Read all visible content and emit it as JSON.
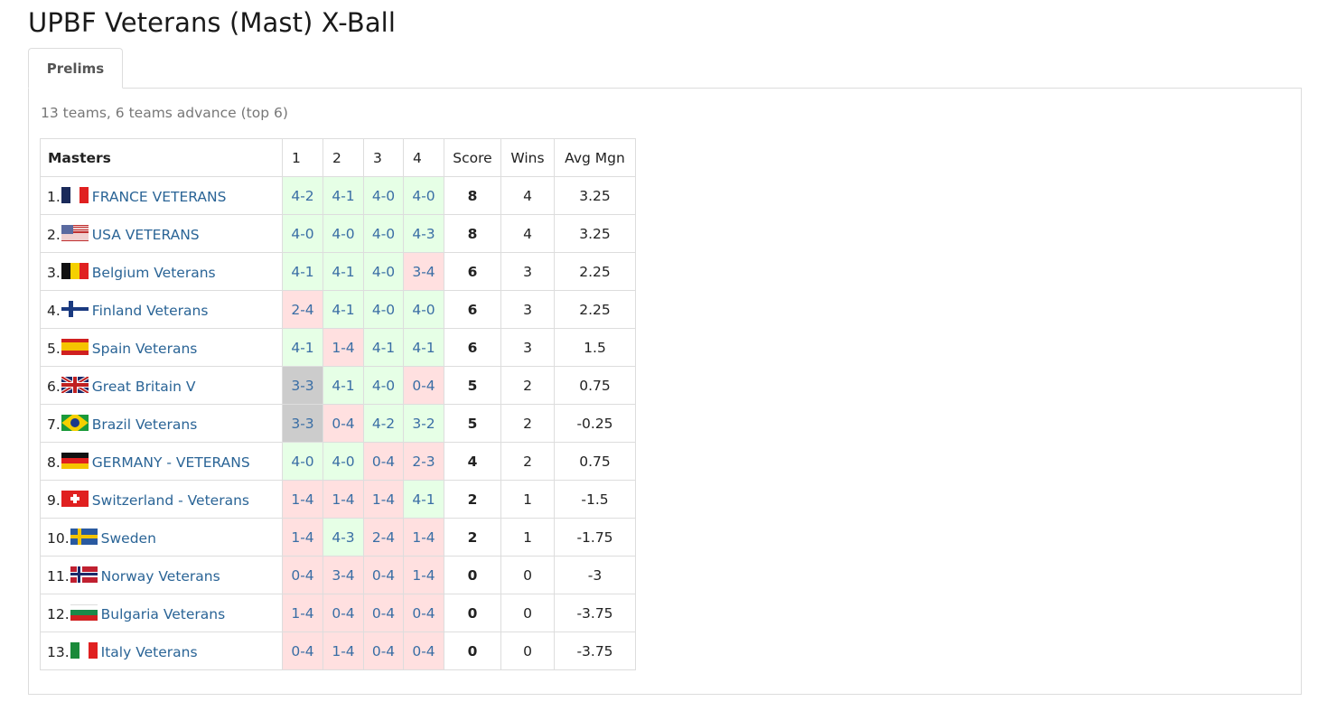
{
  "page": {
    "title": "UPBF Veterans (Mast) X-Ball"
  },
  "tabs": [
    {
      "label": "Prelims",
      "active": true
    }
  ],
  "division": {
    "summary": "13 teams, 6 teams advance (top 6)",
    "headers": {
      "team": "Masters",
      "r1": "1",
      "r2": "2",
      "r3": "3",
      "r4": "4",
      "score": "Score",
      "wins": "Wins",
      "avg": "Avg Mgn"
    },
    "result_colors": {
      "win": "#e6ffe6",
      "loss": "#ffe0e0",
      "draw": "#cccccc"
    },
    "teams": [
      {
        "rank": "1.",
        "flag": "france-flag-icon",
        "name": "FRANCE VETERANS",
        "games": [
          {
            "s": "4-2",
            "r": "w"
          },
          {
            "s": "4-1",
            "r": "w"
          },
          {
            "s": "4-0",
            "r": "w"
          },
          {
            "s": "4-0",
            "r": "w"
          }
        ],
        "score": "8",
        "wins": "4",
        "avg": "3.25"
      },
      {
        "rank": "2.",
        "flag": "usa-flag-icon",
        "name": "USA VETERANS",
        "games": [
          {
            "s": "4-0",
            "r": "w"
          },
          {
            "s": "4-0",
            "r": "w"
          },
          {
            "s": "4-0",
            "r": "w"
          },
          {
            "s": "4-3",
            "r": "w"
          }
        ],
        "score": "8",
        "wins": "4",
        "avg": "3.25"
      },
      {
        "rank": "3.",
        "flag": "belgium-flag-icon",
        "name": "Belgium Veterans",
        "games": [
          {
            "s": "4-1",
            "r": "w"
          },
          {
            "s": "4-1",
            "r": "w"
          },
          {
            "s": "4-0",
            "r": "w"
          },
          {
            "s": "3-4",
            "r": "l"
          }
        ],
        "score": "6",
        "wins": "3",
        "avg": "2.25"
      },
      {
        "rank": "4.",
        "flag": "finland-flag-icon",
        "name": "Finland Veterans",
        "games": [
          {
            "s": "2-4",
            "r": "l"
          },
          {
            "s": "4-1",
            "r": "w"
          },
          {
            "s": "4-0",
            "r": "w"
          },
          {
            "s": "4-0",
            "r": "w"
          }
        ],
        "score": "6",
        "wins": "3",
        "avg": "2.25"
      },
      {
        "rank": "5.",
        "flag": "spain-flag-icon",
        "name": "Spain Veterans",
        "games": [
          {
            "s": "4-1",
            "r": "w"
          },
          {
            "s": "1-4",
            "r": "l"
          },
          {
            "s": "4-1",
            "r": "w"
          },
          {
            "s": "4-1",
            "r": "w"
          }
        ],
        "score": "6",
        "wins": "3",
        "avg": "1.5"
      },
      {
        "rank": "6.",
        "flag": "great-britain-flag-icon",
        "name": "Great Britain V",
        "games": [
          {
            "s": "3-3",
            "r": "d"
          },
          {
            "s": "4-1",
            "r": "w"
          },
          {
            "s": "4-0",
            "r": "w"
          },
          {
            "s": "0-4",
            "r": "l"
          }
        ],
        "score": "5",
        "wins": "2",
        "avg": "0.75"
      },
      {
        "rank": "7.",
        "flag": "brazil-flag-icon",
        "name": "Brazil Veterans",
        "games": [
          {
            "s": "3-3",
            "r": "d"
          },
          {
            "s": "0-4",
            "r": "l"
          },
          {
            "s": "4-2",
            "r": "w"
          },
          {
            "s": "3-2",
            "r": "w"
          }
        ],
        "score": "5",
        "wins": "2",
        "avg": "-0.25"
      },
      {
        "rank": "8.",
        "flag": "germany-flag-icon",
        "name": "GERMANY - VETERANS",
        "games": [
          {
            "s": "4-0",
            "r": "w"
          },
          {
            "s": "4-0",
            "r": "w"
          },
          {
            "s": "0-4",
            "r": "l"
          },
          {
            "s": "2-3",
            "r": "l"
          }
        ],
        "score": "4",
        "wins": "2",
        "avg": "0.75"
      },
      {
        "rank": "9.",
        "flag": "switzerland-flag-icon",
        "name": "Switzerland - Veterans",
        "games": [
          {
            "s": "1-4",
            "r": "l"
          },
          {
            "s": "1-4",
            "r": "l"
          },
          {
            "s": "1-4",
            "r": "l"
          },
          {
            "s": "4-1",
            "r": "w"
          }
        ],
        "score": "2",
        "wins": "1",
        "avg": "-1.5"
      },
      {
        "rank": "10.",
        "flag": "sweden-flag-icon",
        "name": "Sweden",
        "games": [
          {
            "s": "1-4",
            "r": "l"
          },
          {
            "s": "4-3",
            "r": "w"
          },
          {
            "s": "2-4",
            "r": "l"
          },
          {
            "s": "1-4",
            "r": "l"
          }
        ],
        "score": "2",
        "wins": "1",
        "avg": "-1.75"
      },
      {
        "rank": "11.",
        "flag": "norway-flag-icon",
        "name": "Norway Veterans",
        "games": [
          {
            "s": "0-4",
            "r": "l"
          },
          {
            "s": "3-4",
            "r": "l"
          },
          {
            "s": "0-4",
            "r": "l"
          },
          {
            "s": "1-4",
            "r": "l"
          }
        ],
        "score": "0",
        "wins": "0",
        "avg": "-3"
      },
      {
        "rank": "12.",
        "flag": "bulgaria-flag-icon",
        "name": "Bulgaria Veterans",
        "games": [
          {
            "s": "1-4",
            "r": "l"
          },
          {
            "s": "0-4",
            "r": "l"
          },
          {
            "s": "0-4",
            "r": "l"
          },
          {
            "s": "0-4",
            "r": "l"
          }
        ],
        "score": "0",
        "wins": "0",
        "avg": "-3.75"
      },
      {
        "rank": "13.",
        "flag": "italy-flag-icon",
        "name": "Italy Veterans",
        "games": [
          {
            "s": "0-4",
            "r": "l"
          },
          {
            "s": "1-4",
            "r": "l"
          },
          {
            "s": "0-4",
            "r": "l"
          },
          {
            "s": "0-4",
            "r": "l"
          }
        ],
        "score": "0",
        "wins": "0",
        "avg": "-3.75"
      }
    ]
  }
}
